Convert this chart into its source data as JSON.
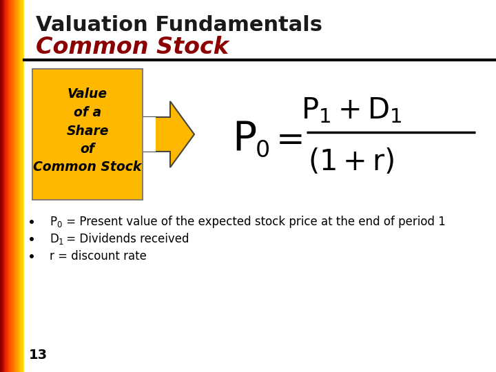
{
  "title_line1": "Valuation Fundamentals",
  "title_line2": "Common Stock",
  "title_color": "#1a1a1a",
  "subtitle_color": "#8B0000",
  "bg_color": "#ffffff",
  "box_color": "#FFB800",
  "box_text": "Value\nof a\nShare\nof\nCommon Stock",
  "box_text_color": "#000000",
  "arrow_color": "#FFB800",
  "slide_number": "13",
  "divider_color": "#000000",
  "bullet1_pre": "P",
  "bullet1_sub": "0",
  "bullet1_post": " = Present value of the expected stock price at the end of period 1",
  "bullet2_pre": "D",
  "bullet2_sub": "1",
  "bullet2_post": " = Dividends received",
  "bullet3": "r = discount rate"
}
